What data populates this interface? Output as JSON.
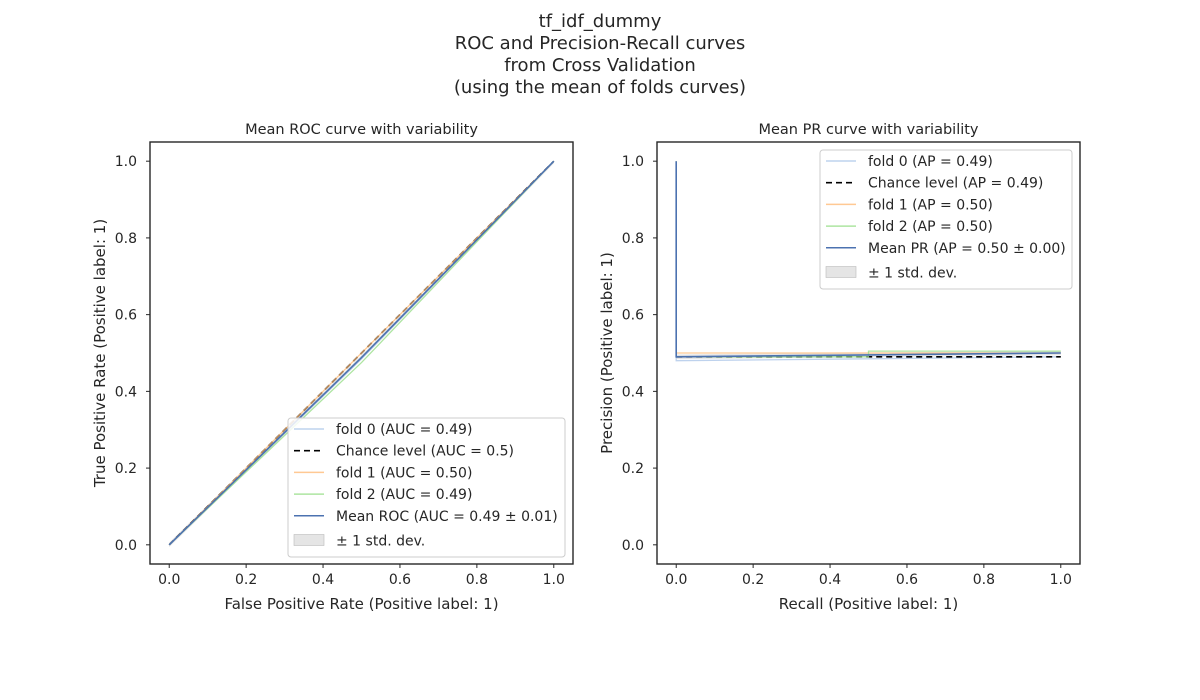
{
  "suptitle": {
    "lines": [
      "tf_idf_dummy",
      "ROC and Precision-Recall curves",
      "from Cross Validation",
      "(using the mean of folds curves)"
    ]
  },
  "chart_data": [
    {
      "type": "line",
      "title": "Mean ROC curve with variability",
      "xlabel": "False Positive Rate (Positive label: 1)",
      "ylabel": "True Positive Rate (Positive label: 1)",
      "xlim": [
        -0.05,
        1.05
      ],
      "ylim": [
        -0.05,
        1.05
      ],
      "xticks": [
        "0.0",
        "0.2",
        "0.4",
        "0.6",
        "0.8",
        "1.0"
      ],
      "yticks": [
        "0.0",
        "0.2",
        "0.4",
        "0.6",
        "0.8",
        "1.0"
      ],
      "grid": false,
      "legend_position": "lower-right",
      "series": [
        {
          "name": "fold 0 (AUC = 0.49)",
          "color": "#aec7e8",
          "style": "solid",
          "points": [
            [
              0,
              0
            ],
            [
              0.5,
              0.485
            ],
            [
              1,
              1
            ]
          ]
        },
        {
          "name": "Chance level (AUC = 0.5)",
          "color": "#000000",
          "style": "dashed",
          "points": [
            [
              0,
              0
            ],
            [
              1,
              1
            ]
          ]
        },
        {
          "name": "fold 1 (AUC = 0.50)",
          "color": "#ffbb78",
          "style": "solid",
          "points": [
            [
              0,
              0
            ],
            [
              0.5,
              0.5
            ],
            [
              1,
              1
            ]
          ]
        },
        {
          "name": "fold 2 (AUC = 0.49)",
          "color": "#98df8a",
          "style": "solid",
          "points": [
            [
              0,
              0
            ],
            [
              0.5,
              0.475
            ],
            [
              1,
              1
            ]
          ]
        },
        {
          "name": "Mean ROC (AUC = 0.49 ± 0.01)",
          "color": "#4c72b0",
          "style": "solid",
          "points": [
            [
              0,
              0
            ],
            [
              0.5,
              0.488
            ],
            [
              1,
              1
            ]
          ]
        }
      ],
      "band": {
        "name": "± 1 std. dev.",
        "color": "#cccccc"
      }
    },
    {
      "type": "line",
      "title": "Mean PR curve with variability",
      "xlabel": "Recall (Positive label: 1)",
      "ylabel": "Precision (Positive label: 1)",
      "xlim": [
        -0.05,
        1.05
      ],
      "ylim": [
        -0.05,
        1.05
      ],
      "xticks": [
        "0.0",
        "0.2",
        "0.4",
        "0.6",
        "0.8",
        "1.0"
      ],
      "yticks": [
        "0.0",
        "0.2",
        "0.4",
        "0.6",
        "0.8",
        "1.0"
      ],
      "grid": false,
      "legend_position": "upper-right",
      "series": [
        {
          "name": "fold 0 (AP = 0.49)",
          "color": "#aec7e8",
          "style": "solid",
          "points": [
            [
              0,
              1.0
            ],
            [
              0,
              0.48
            ],
            [
              0.5,
              0.485
            ],
            [
              1,
              0.49
            ]
          ]
        },
        {
          "name": "Chance level (AP = 0.49)",
          "color": "#000000",
          "style": "dashed",
          "points": [
            [
              0,
              0.49
            ],
            [
              1,
              0.49
            ]
          ]
        },
        {
          "name": "fold 1 (AP = 0.50)",
          "color": "#ffbb78",
          "style": "solid",
          "points": [
            [
              0,
              1.0
            ],
            [
              0,
              0.5
            ],
            [
              0.5,
              0.5
            ],
            [
              1,
              0.5
            ]
          ]
        },
        {
          "name": "fold 2 (AP = 0.50)",
          "color": "#98df8a",
          "style": "solid",
          "points": [
            [
              0,
              1.0
            ],
            [
              0,
              0.49
            ],
            [
              0.5,
              0.49
            ],
            [
              0.5,
              0.505
            ],
            [
              1,
              0.505
            ]
          ]
        },
        {
          "name": "Mean PR (AP = 0.50 ± 0.00)",
          "color": "#4c72b0",
          "style": "solid",
          "points": [
            [
              0,
              1.0
            ],
            [
              0,
              0.49
            ],
            [
              0.5,
              0.495
            ],
            [
              1,
              0.5
            ]
          ]
        }
      ],
      "band": {
        "name": "± 1 std. dev.",
        "color": "#cccccc"
      }
    }
  ]
}
